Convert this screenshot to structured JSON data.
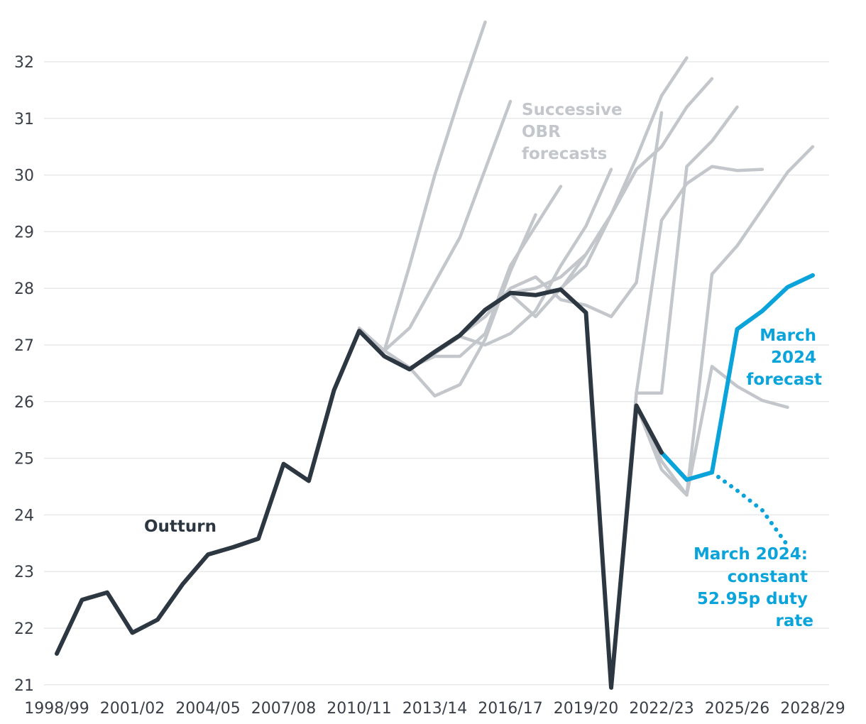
{
  "colors": {
    "outturn": "#2d3741",
    "forecasts": "#c3c6ca",
    "march2024": "#0aa4db",
    "grid": "#e8e9eb",
    "axis_text": "#3a3f47"
  },
  "chart_data": {
    "type": "line",
    "title": "",
    "xlabel": "",
    "ylabel": "",
    "ylim": [
      21,
      32
    ],
    "yticks": [
      "21",
      "22",
      "23",
      "24",
      "25",
      "26",
      "27",
      "28",
      "29",
      "30",
      "31",
      "32"
    ],
    "xticks": [
      "1998/99",
      "2001/02",
      "2004/05",
      "2007/08",
      "2010/11",
      "2013/14",
      "2016/17",
      "2019/20",
      "2022/23",
      "2025/26",
      "2028/29"
    ],
    "grid": true,
    "labels": {
      "outturn": "Outturn",
      "forecasts": [
        "Successive",
        "OBR",
        "forecasts"
      ],
      "march2024": [
        "March",
        "2024",
        "forecast"
      ],
      "constant": [
        "March 2024:",
        "constant",
        "52.95p duty",
        "rate"
      ]
    },
    "series": [
      {
        "name": "Outturn",
        "role": "outturn",
        "start": "1998/99",
        "values": [
          21.55,
          22.5,
          22.63,
          21.92,
          22.15,
          22.78,
          23.3,
          23.43,
          23.58,
          24.9,
          24.6,
          26.2,
          27.25,
          26.8,
          26.57,
          26.88,
          27.17,
          27.62,
          27.92,
          27.88,
          27.98,
          27.57,
          20.95,
          25.93,
          25.1
        ]
      },
      {
        "name": "March 2024 forecast",
        "role": "march2024",
        "start": "2022/23",
        "values": [
          25.1,
          24.62,
          24.75,
          27.28,
          27.6,
          28.02,
          28.23
        ]
      },
      {
        "name": "March 2024: constant 52.95p duty rate",
        "role": "constant",
        "start": "2024/25",
        "values": [
          24.75,
          24.43,
          24.08,
          23.46
        ]
      },
      {
        "role": "forecast",
        "start": "2010/11",
        "values": [
          27.3,
          26.9,
          28.4,
          30.0,
          31.4,
          32.7
        ]
      },
      {
        "role": "forecast",
        "start": "2011/12",
        "values": [
          26.9,
          27.3,
          28.1,
          28.9,
          30.1,
          31.3
        ]
      },
      {
        "role": "forecast",
        "start": "2011/12",
        "values": [
          26.9,
          26.6,
          26.1,
          26.3,
          27.1,
          28.3,
          29.3
        ]
      },
      {
        "role": "forecast",
        "start": "2012/13",
        "values": [
          26.6,
          26.8,
          26.8,
          27.2,
          28.4,
          29.1,
          29.8
        ]
      },
      {
        "role": "forecast",
        "start": "2013/14",
        "values": [
          26.85,
          27.15,
          27.0,
          27.2,
          27.6,
          28.4,
          29.1,
          30.1
        ]
      },
      {
        "role": "forecast",
        "start": "2014/15",
        "values": [
          27.17,
          27.5,
          28.0,
          28.2,
          27.8,
          27.7,
          27.5,
          28.1,
          31.1
        ]
      },
      {
        "role": "forecast",
        "start": "2015/16",
        "values": [
          27.62,
          27.9,
          27.5,
          28.0,
          28.4,
          29.3,
          30.1
        ]
      },
      {
        "role": "forecast",
        "start": "2016/17",
        "values": [
          27.92,
          28.0,
          28.2,
          28.6,
          29.3,
          30.3,
          31.4,
          32.07
        ]
      },
      {
        "role": "forecast",
        "start": "2018/19",
        "values": [
          27.98,
          28.6,
          29.3,
          30.1,
          30.5,
          31.2,
          31.7
        ]
      },
      {
        "role": "forecast",
        "start": "2019/20",
        "values": [
          27.57,
          20.95,
          26.15,
          26.15,
          30.15,
          30.6,
          31.2
        ]
      },
      {
        "role": "forecast",
        "start": "2020/21",
        "values": [
          20.95,
          26.15,
          29.2,
          29.85,
          30.15,
          30.08,
          30.1
        ]
      },
      {
        "role": "forecast",
        "start": "2021/22",
        "values": [
          25.93,
          24.8,
          24.35,
          28.25,
          28.75,
          29.4,
          30.05,
          30.5
        ]
      },
      {
        "role": "forecast",
        "start": "2021/22",
        "values": [
          25.93,
          24.95,
          24.35,
          26.62,
          26.27,
          26.02,
          25.9
        ]
      }
    ]
  }
}
